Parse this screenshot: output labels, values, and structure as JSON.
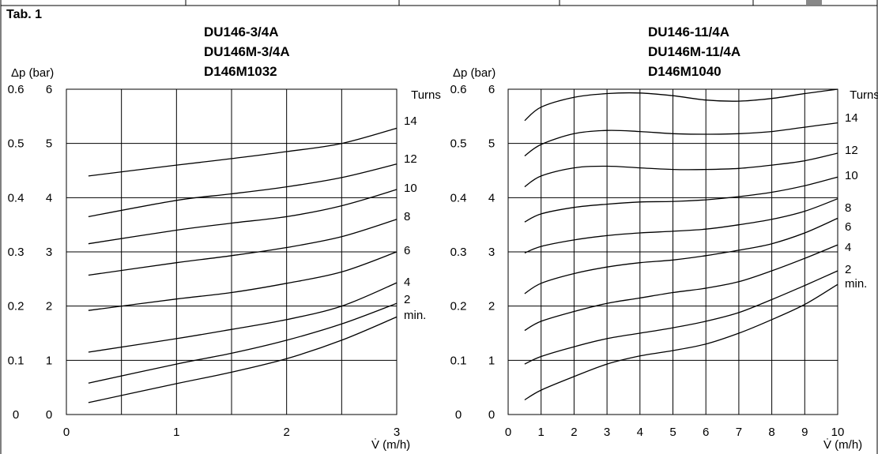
{
  "table_label": "Tab. 1",
  "chart_data": [
    {
      "type": "line",
      "title_lines": [
        "DU146-3/4A",
        "DU146M-3/4A",
        "D146M1032"
      ],
      "ylabel": "Δp (bar)",
      "xlabel": "V̇ (m/h)",
      "y_bar_ticks": [
        "0.6",
        "0.5",
        "0.4",
        "0.3",
        "0.2",
        "0.1",
        "0"
      ],
      "y_ticks": [
        "6",
        "5",
        "4",
        "3",
        "2",
        "1",
        "0"
      ],
      "x_ticks": [
        "0",
        "1",
        "2",
        "3"
      ],
      "legend_title": "Turns",
      "xlim": [
        0,
        3
      ],
      "ylim": [
        0,
        6
      ],
      "xgrid": [
        0,
        0.5,
        1,
        1.5,
        2,
        2.5,
        3
      ],
      "grid": true,
      "series": [
        {
          "name": "14",
          "x": [
            0.2,
            1.0,
            1.5,
            2.0,
            2.5,
            3.0
          ],
          "y": [
            4.4,
            4.6,
            4.72,
            4.85,
            5.0,
            5.28
          ]
        },
        {
          "name": "12",
          "x": [
            0.2,
            1.0,
            1.5,
            2.0,
            2.5,
            3.0
          ],
          "y": [
            3.65,
            3.95,
            4.07,
            4.2,
            4.37,
            4.62
          ]
        },
        {
          "name": "10",
          "x": [
            0.2,
            1.0,
            1.5,
            2.0,
            2.5,
            3.0
          ],
          "y": [
            3.15,
            3.4,
            3.53,
            3.65,
            3.85,
            4.15
          ]
        },
        {
          "name": "8",
          "x": [
            0.2,
            1.0,
            1.5,
            2.0,
            2.5,
            3.0
          ],
          "y": [
            2.57,
            2.8,
            2.93,
            3.08,
            3.28,
            3.6
          ]
        },
        {
          "name": "6",
          "x": [
            0.2,
            1.0,
            1.5,
            2.0,
            2.5,
            3.0
          ],
          "y": [
            1.92,
            2.13,
            2.25,
            2.42,
            2.63,
            3.0
          ]
        },
        {
          "name": "4",
          "x": [
            0.2,
            1.0,
            1.5,
            2.0,
            2.5,
            3.0
          ],
          "y": [
            1.15,
            1.4,
            1.57,
            1.75,
            2.0,
            2.43
          ]
        },
        {
          "name": "2",
          "x": [
            0.2,
            1.0,
            1.5,
            2.0,
            2.5,
            3.0
          ],
          "y": [
            0.58,
            0.93,
            1.13,
            1.37,
            1.67,
            2.05
          ]
        },
        {
          "name": "min.",
          "x": [
            0.2,
            1.0,
            1.5,
            2.0,
            2.5,
            3.0
          ],
          "y": [
            0.22,
            0.57,
            0.78,
            1.03,
            1.37,
            1.8
          ]
        }
      ]
    },
    {
      "type": "line",
      "title_lines": [
        "DU146-11/4A",
        "DU146M-11/4A",
        "D146M1040"
      ],
      "ylabel": "Δp (bar)",
      "xlabel": "V̇ (m/h)",
      "y_bar_ticks": [
        "0.6",
        "0.5",
        "0.4",
        "0.3",
        "0.2",
        "0.1",
        "0"
      ],
      "y_ticks": [
        "6",
        "5",
        "4",
        "3",
        "2",
        "1",
        "0"
      ],
      "x_ticks": [
        "0",
        "1",
        "2",
        "3",
        "4",
        "5",
        "6",
        "7",
        "8",
        "9",
        "10"
      ],
      "legend_title": "Turns",
      "xlim": [
        0,
        10
      ],
      "ylim": [
        0,
        6
      ],
      "xgrid": [
        0,
        1,
        2,
        3,
        4,
        5,
        6,
        7,
        8,
        9,
        10
      ],
      "grid": true,
      "series": [
        {
          "name": "14",
          "x": [
            0.5,
            1,
            2,
            3,
            4,
            5,
            6,
            7,
            8,
            9,
            10
          ],
          "y": [
            5.42,
            5.67,
            5.85,
            5.92,
            5.93,
            5.88,
            5.8,
            5.78,
            5.83,
            5.92,
            6.0
          ]
        },
        {
          "name": "12",
          "x": [
            0.5,
            1,
            2,
            3,
            4,
            5,
            6,
            7,
            8,
            9,
            10
          ],
          "y": [
            4.77,
            4.98,
            5.18,
            5.24,
            5.22,
            5.18,
            5.17,
            5.18,
            5.22,
            5.3,
            5.38
          ]
        },
        {
          "name": "10",
          "x": [
            0.5,
            1,
            2,
            3,
            4,
            5,
            6,
            7,
            8,
            9,
            10
          ],
          "y": [
            4.2,
            4.4,
            4.55,
            4.58,
            4.55,
            4.52,
            4.52,
            4.54,
            4.6,
            4.68,
            4.82
          ]
        },
        {
          "name": "8",
          "x": [
            0.5,
            1,
            2,
            3,
            4,
            5,
            6,
            7,
            8,
            9,
            10
          ],
          "y": [
            3.55,
            3.7,
            3.82,
            3.88,
            3.92,
            3.93,
            3.96,
            4.02,
            4.1,
            4.22,
            4.38
          ]
        },
        {
          "name": "6",
          "x": [
            0.5,
            1,
            2,
            3,
            4,
            5,
            6,
            7,
            8,
            9,
            10
          ],
          "y": [
            2.98,
            3.1,
            3.22,
            3.3,
            3.35,
            3.38,
            3.42,
            3.5,
            3.6,
            3.75,
            3.98
          ]
        },
        {
          "name": "4",
          "x": [
            0.5,
            1,
            2,
            3,
            4,
            5,
            6,
            7,
            8,
            9,
            10
          ],
          "y": [
            2.23,
            2.42,
            2.6,
            2.72,
            2.8,
            2.85,
            2.93,
            3.03,
            3.15,
            3.35,
            3.62
          ]
        },
        {
          "name": "2",
          "x": [
            0.5,
            1,
            2,
            3,
            4,
            5,
            6,
            7,
            8,
            9,
            10
          ],
          "y": [
            1.55,
            1.72,
            1.9,
            2.05,
            2.15,
            2.25,
            2.33,
            2.45,
            2.65,
            2.88,
            3.13
          ]
        },
        {
          "name": "min.",
          "x": [
            0.5,
            1,
            2,
            3,
            4,
            5,
            6,
            7,
            8,
            9,
            10
          ],
          "y": [
            0.93,
            1.07,
            1.25,
            1.4,
            1.5,
            1.6,
            1.72,
            1.88,
            2.12,
            2.38,
            2.65
          ]
        },
        {
          "name": "",
          "x": [
            0.5,
            1,
            2,
            3,
            4,
            5,
            6,
            7,
            8,
            9,
            10
          ],
          "y": [
            0.27,
            0.45,
            0.7,
            0.93,
            1.08,
            1.18,
            1.3,
            1.5,
            1.75,
            2.03,
            2.4
          ]
        }
      ]
    }
  ]
}
